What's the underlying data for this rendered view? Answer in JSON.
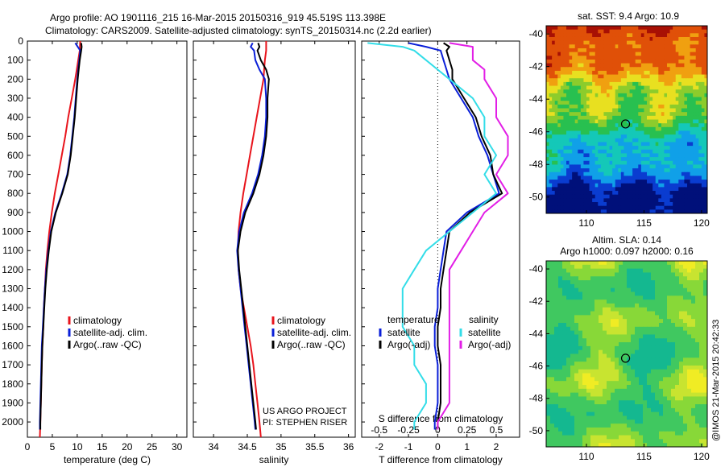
{
  "header": {
    "line1": "Argo profile: AO 1901116_215 16-Mar-2015 20150316_919 45.519S 113.398E",
    "line2": "Climatology: CARS2009. Satellite-adjusted climatology: synTS_20150314.nc (2.2d earlier)"
  },
  "credit": {
    "project": "US ARGO PROJECT",
    "pi": "PI: STEPHEN RISER",
    "stamp": "@IMOS 21-Mar-2015 20:42:33"
  },
  "colors": {
    "climatology": "#e8141c",
    "satellite": "#0a1fd8",
    "argo": "#000000",
    "s_satellite": "#33dde8",
    "s_argo": "#e21ee6"
  },
  "chart_data": [
    {
      "type": "line",
      "id": "temperature",
      "xlabel": "temperature (deg C)",
      "xlim": [
        0,
        32
      ],
      "ylim": [
        2080,
        0
      ],
      "xticks": [
        "0",
        "5",
        "10",
        "15",
        "20",
        "25",
        "30"
      ],
      "xtick_values": [
        0,
        5,
        10,
        15,
        20,
        25,
        30
      ],
      "yticks": [
        "0",
        "100",
        "200",
        "300",
        "400",
        "500",
        "600",
        "700",
        "800",
        "900",
        "1000",
        "1100",
        "1200",
        "1300",
        "1400",
        "1500",
        "1600",
        "1700",
        "1800",
        "1900",
        "2000"
      ],
      "depth": [
        0,
        50,
        100,
        150,
        200,
        300,
        400,
        500,
        600,
        700,
        800,
        900,
        1000,
        1100,
        1200,
        1300,
        1400,
        1500,
        1600,
        1700,
        1800,
        1900,
        2000,
        2040
      ],
      "legend": [
        "climatology",
        "satellite-adj. clim.",
        "Argo(..raw -QC)"
      ],
      "series": [
        {
          "name": "climatology",
          "color_key": "climatology",
          "depth": [
            0,
            50,
            100,
            150,
            200,
            300,
            400,
            500,
            600,
            700,
            800,
            900,
            1000,
            1100,
            1200,
            1300,
            1400,
            1500,
            1600,
            1700,
            1800,
            1900,
            2000,
            2080
          ],
          "values": [
            10.6,
            10.5,
            10.2,
            9.9,
            9.6,
            8.9,
            8.2,
            7.6,
            6.9,
            6.2,
            5.5,
            4.9,
            4.4,
            4.0,
            3.7,
            3.5,
            3.3,
            3.2,
            3.0,
            2.9,
            2.8,
            2.7,
            2.6,
            2.5
          ]
        },
        {
          "name": "satellite-adj. clim.",
          "color_key": "satellite",
          "depth": [
            10,
            30,
            50,
            100,
            150,
            200,
            300,
            400,
            500,
            600,
            700,
            800,
            900,
            1000,
            1100,
            1200,
            1300,
            1400,
            1500,
            1600,
            1700,
            1800,
            1900,
            2000,
            2040
          ],
          "values": [
            9.6,
            10.1,
            10.6,
            10.4,
            10.2,
            10.0,
            9.7,
            9.4,
            9.0,
            8.6,
            8.0,
            6.9,
            5.6,
            4.7,
            4.2,
            3.8,
            3.5,
            3.3,
            3.1,
            2.9,
            2.8,
            2.7,
            2.6,
            2.5,
            2.5
          ]
        },
        {
          "name": "Argo(..raw -QC)",
          "color_key": "argo",
          "depth": [
            10,
            30,
            50,
            100,
            150,
            200,
            300,
            400,
            500,
            600,
            700,
            800,
            900,
            1000,
            1100,
            1200,
            1300,
            1400,
            1500,
            1600,
            1700,
            1800,
            1900,
            2000,
            2040
          ],
          "values": [
            10.8,
            10.9,
            10.8,
            10.5,
            10.3,
            10.1,
            9.8,
            9.5,
            9.1,
            8.7,
            8.1,
            7.0,
            5.7,
            4.8,
            4.3,
            3.9,
            3.6,
            3.4,
            3.2,
            3.0,
            2.9,
            2.8,
            2.7,
            2.6,
            2.6
          ]
        }
      ]
    },
    {
      "type": "line",
      "id": "salinity",
      "xlabel": "salinity",
      "xlim": [
        33.7,
        36.1
      ],
      "ylim": [
        2080,
        0
      ],
      "xticks": [
        "34",
        "34.5",
        "35",
        "35.5",
        "36"
      ],
      "xtick_values": [
        34,
        34.5,
        35,
        35.5,
        36
      ],
      "legend": [
        "climatology",
        "satellite-adj. clim.",
        "Argo(..raw -QC)"
      ],
      "series": [
        {
          "name": "climatology",
          "color_key": "climatology",
          "depth": [
            0,
            50,
            100,
            150,
            200,
            300,
            400,
            500,
            600,
            700,
            800,
            900,
            1000,
            1100,
            1200,
            1300,
            1400,
            1500,
            1600,
            1700,
            1800,
            1900,
            2000,
            2080
          ],
          "values": [
            34.78,
            34.78,
            34.76,
            34.75,
            34.74,
            34.69,
            34.64,
            34.59,
            34.54,
            34.49,
            34.44,
            34.4,
            34.37,
            34.36,
            34.37,
            34.4,
            34.45,
            34.5,
            34.55,
            34.59,
            34.62,
            34.65,
            34.68,
            34.7
          ]
        },
        {
          "name": "satellite-adj. clim.",
          "color_key": "satellite",
          "depth": [
            10,
            30,
            50,
            100,
            150,
            200,
            300,
            400,
            500,
            600,
            700,
            800,
            900,
            1000,
            1100,
            1200,
            1300,
            1400,
            1500,
            1600,
            1700,
            1800,
            1900,
            2000,
            2040
          ],
          "values": [
            34.58,
            34.55,
            34.6,
            34.62,
            34.68,
            34.76,
            34.78,
            34.78,
            34.76,
            34.72,
            34.66,
            34.57,
            34.45,
            34.38,
            34.35,
            34.37,
            34.4,
            34.43,
            34.46,
            34.49,
            34.52,
            34.55,
            34.58,
            34.61,
            34.62
          ]
        },
        {
          "name": "Argo(..raw -QC)",
          "color_key": "argo",
          "depth": [
            10,
            30,
            50,
            100,
            150,
            200,
            300,
            400,
            500,
            600,
            700,
            800,
            900,
            1000,
            1100,
            1200,
            1300,
            1400,
            1500,
            1600,
            1700,
            1800,
            1900,
            2000,
            2040
          ],
          "values": [
            34.66,
            34.68,
            34.65,
            34.7,
            34.78,
            34.82,
            34.8,
            34.8,
            34.78,
            34.74,
            34.68,
            34.59,
            34.47,
            34.4,
            34.36,
            34.38,
            34.41,
            34.44,
            34.47,
            34.5,
            34.53,
            34.56,
            34.59,
            34.62,
            34.63
          ]
        }
      ]
    },
    {
      "type": "line",
      "id": "difference",
      "xlabel": "T difference from climatology",
      "xlabel2": "S difference from climatology",
      "xlim": [
        -2.6,
        2.8
      ],
      "ylim": [
        2080,
        0
      ],
      "xticks": [
        "-2",
        "-1",
        "0",
        "1",
        "2"
      ],
      "xtick_values": [
        -2,
        -1,
        0,
        1,
        2
      ],
      "sticks": [
        "-0.5",
        "-0.25",
        "0",
        "0.25",
        "0.5"
      ],
      "stick_values": [
        -0.5,
        -0.25,
        0,
        0.25,
        0.5
      ],
      "legend_title_t": "temperature",
      "legend_title_s": "salinity",
      "legend": [
        "satellite",
        "Argo(-adj)",
        "satellite",
        "Argo(-adj)"
      ],
      "series": [
        {
          "name": "satellite",
          "color_key": "satellite",
          "depth": [
            10,
            30,
            50,
            100,
            150,
            200,
            300,
            400,
            500,
            600,
            700,
            800,
            900,
            1000,
            1100,
            1200,
            1300,
            1400,
            1500,
            1600,
            1700,
            1800,
            1900,
            2000,
            2040
          ],
          "values": [
            -1.0,
            -0.4,
            0.1,
            0.2,
            0.3,
            0.4,
            0.8,
            1.2,
            1.4,
            1.7,
            1.9,
            2.1,
            1.0,
            0.3,
            0.2,
            0.1,
            0.0,
            0.0,
            -0.1,
            -0.1,
            0.0,
            0.0,
            0.0,
            -0.1,
            -0.1
          ]
        },
        {
          "name": "Argo(-adj)",
          "color_key": "argo",
          "depth": [
            10,
            30,
            50,
            100,
            150,
            200,
            300,
            400,
            500,
            600,
            700,
            800,
            900,
            1000,
            1100,
            1200,
            1300,
            1400,
            1500,
            1600,
            1700,
            1800,
            1900,
            2000,
            2040
          ],
          "values": [
            0.2,
            0.4,
            0.3,
            0.4,
            0.5,
            0.5,
            0.9,
            1.3,
            1.5,
            1.8,
            1.9,
            2.2,
            1.1,
            0.4,
            0.3,
            0.2,
            0.1,
            0.1,
            0.0,
            0.0,
            0.1,
            0.1,
            0.1,
            0.0,
            0.0
          ]
        },
        {
          "name": "satellite",
          "color_key": "s_satellite",
          "depth": [
            10,
            30,
            50,
            100,
            150,
            200,
            300,
            400,
            500,
            600,
            700,
            800,
            900,
            1000,
            1100,
            1200,
            1300,
            1400,
            1500,
            1600,
            1700,
            1800,
            1900,
            2000,
            2040
          ],
          "values": [
            -0.6,
            -0.3,
            -0.2,
            -0.1,
            0.0,
            0.1,
            0.3,
            0.4,
            0.4,
            0.5,
            0.4,
            0.5,
            0.3,
            0.1,
            -0.1,
            -0.2,
            -0.3,
            -0.3,
            -0.3,
            -0.2,
            -0.2,
            -0.1,
            -0.1,
            -0.2,
            -0.2
          ]
        },
        {
          "name": "Argo(-adj)",
          "color_key": "s_argo",
          "depth": [
            10,
            30,
            50,
            100,
            150,
            200,
            300,
            400,
            500,
            600,
            700,
            800,
            900,
            1000,
            1100,
            1200,
            1300,
            1400,
            1500,
            1600,
            1700,
            1800,
            1900,
            2000,
            2040
          ],
          "values": [
            0.1,
            0.3,
            0.3,
            0.3,
            0.4,
            0.4,
            0.5,
            0.5,
            0.6,
            0.6,
            0.5,
            0.6,
            0.4,
            0.3,
            0.2,
            0.1,
            0.1,
            0.1,
            0.1,
            0.1,
            0.1,
            0.1,
            0.1,
            0.0,
            0.0
          ]
        }
      ]
    },
    {
      "type": "heatmap",
      "id": "sst_map",
      "title": "sat. SST: 9.4  Argo: 10.9",
      "xlim": [
        106.5,
        120.5
      ],
      "ylim": [
        -51,
        -39.5
      ],
      "xticks": [
        "110",
        "115",
        "120"
      ],
      "xtick_values": [
        110,
        115,
        120
      ],
      "yticks": [
        "-40",
        "-42",
        "-44",
        "-46",
        "-48",
        "-50"
      ],
      "ytick_values": [
        -40,
        -42,
        -44,
        -46,
        -48,
        -50
      ],
      "marker": {
        "lon": 113.398,
        "lat": -45.519
      }
    },
    {
      "type": "heatmap",
      "id": "sla_map",
      "title": "Altim. SLA: 0.14",
      "subtitle": "Argo h1000: 0.097  h2000: 0.16",
      "xlim": [
        106.5,
        120.5
      ],
      "ylim": [
        -51,
        -39.5
      ],
      "xticks": [
        "110",
        "115",
        "120"
      ],
      "xtick_values": [
        110,
        115,
        120
      ],
      "yticks": [
        "-40",
        "-42",
        "-44",
        "-46",
        "-48",
        "-50"
      ],
      "ytick_values": [
        -40,
        -42,
        -44,
        -46,
        -48,
        -50
      ],
      "marker": {
        "lon": 113.398,
        "lat": -45.519
      }
    }
  ]
}
